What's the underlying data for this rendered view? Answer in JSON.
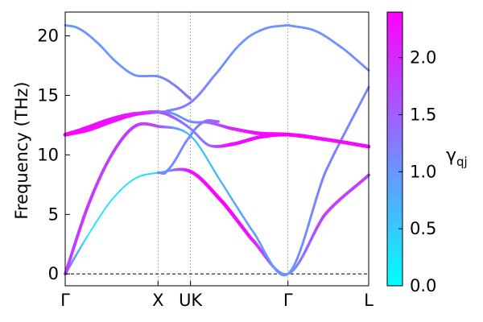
{
  "chart_data": {
    "type": "line",
    "title": "",
    "xlabel": "",
    "ylabel": "Frequency (THz)",
    "ylim": [
      -1,
      22
    ],
    "y_ticks": [
      0,
      5,
      10,
      15,
      20
    ],
    "grid": false,
    "path_points": [
      {
        "label": "Γ",
        "pos": 0
      },
      {
        "label": "X",
        "pos": 1
      },
      {
        "label": "UK",
        "pos": 1.35
      },
      {
        "label": "Γ",
        "pos": 2.4
      },
      {
        "label": "L",
        "pos": 3.27
      }
    ],
    "colorbar": {
      "label_main": "γ",
      "label_sub": "qj",
      "range": [
        0,
        2.4
      ],
      "ticks": [
        "0.0",
        "0.5",
        "1.0",
        "1.5",
        "2.0"
      ],
      "tick_values": [
        0,
        0.5,
        1.0,
        1.5,
        2.0
      ],
      "color_low": "#00ffff",
      "color_high": "#ff00ff"
    },
    "series": [
      {
        "x": [
          0,
          0.25,
          0.5,
          0.75,
          1.0,
          1.35,
          1.7,
          2.0,
          2.4,
          2.8,
          3.27
        ],
        "y": [
          0,
          3.3,
          6.2,
          8.0,
          8.5,
          8.6,
          6.0,
          3.0,
          0,
          5.0,
          8.3
        ],
        "gamma": [
          1.5,
          0.25,
          0.25,
          0.25,
          0.4,
          2.2,
          2.4,
          2.2,
          1.0,
          1.8,
          1.8
        ]
      },
      {
        "x": [
          0,
          0.25,
          0.5,
          0.75,
          1.0,
          1.35,
          1.7,
          2.0,
          2.4,
          2.8,
          3.27
        ],
        "y": [
          0,
          5.8,
          10.0,
          12.4,
          12.4,
          11.6,
          7.5,
          3.8,
          0,
          8.5,
          15.7
        ],
        "gamma": [
          1.8,
          1.9,
          1.8,
          1.9,
          1.7,
          0.55,
          0.7,
          0.9,
          1.0,
          1.2,
          1.1
        ]
      },
      {
        "x": [
          0,
          0.25,
          0.5,
          0.75,
          1.0,
          1.15,
          1.35,
          1.55,
          1.8,
          2.1,
          2.4,
          2.8,
          3.27
        ],
        "y": [
          11.7,
          12.1,
          12.8,
          13.4,
          13.6,
          13.2,
          12.2,
          10.8,
          10.9,
          11.5,
          11.7,
          11.3,
          10.7
        ],
        "gamma": [
          2.4,
          2.3,
          2.3,
          2.3,
          2.1,
          1.6,
          1.2,
          1.3,
          2.3,
          2.3,
          2.4,
          2.3,
          2.3
        ]
      },
      {
        "x": [
          0,
          0.25,
          0.5,
          0.75,
          1.0,
          1.15,
          1.35,
          1.55,
          1.8,
          2.1,
          2.4,
          2.8,
          3.27
        ],
        "y": [
          11.7,
          12.1,
          12.8,
          13.4,
          13.6,
          13.5,
          12.8,
          12.7,
          12.2,
          11.8,
          11.7,
          11.3,
          10.7
        ],
        "gamma": [
          2.4,
          2.3,
          2.2,
          2.2,
          1.4,
          1.0,
          1.1,
          1.3,
          2.0,
          2.3,
          2.4,
          2.3,
          2.3
        ]
      },
      {
        "x": [
          0,
          0.2,
          0.45,
          0.7,
          0.85,
          1.0,
          1.1,
          1.35,
          1.6,
          1.9,
          2.15,
          2.4
        ],
        "y": [
          11.7,
          12.2,
          12.9,
          13.4,
          13.5,
          13.6,
          13.7,
          14.4,
          16.6,
          19.4,
          20.6,
          20.9
        ],
        "gamma": [
          2.4,
          2.3,
          2.3,
          2.2,
          2.1,
          1.5,
          1.2,
          1.2,
          1.1,
          1.0,
          1.0,
          1.0
        ]
      },
      {
        "x": [
          1.0,
          1.1,
          1.35,
          1.5,
          1.65
        ],
        "y": [
          8.5,
          8.7,
          11.6,
          12.8,
          12.8
        ],
        "gamma": [
          1.2,
          1.1,
          1.1,
          1.3,
          1.5
        ]
      },
      {
        "x": [
          0,
          0.15,
          0.35,
          0.55,
          0.75,
          1.0,
          1.15,
          1.35
        ],
        "y": [
          20.9,
          20.6,
          19.4,
          17.8,
          16.7,
          16.6,
          16.0,
          14.7
        ],
        "gamma": [
          1.0,
          1.0,
          1.0,
          1.0,
          1.0,
          1.1,
          1.2,
          1.3
        ]
      },
      {
        "x": [
          2.4,
          2.7,
          3.0,
          3.27
        ],
        "y": [
          20.9,
          20.4,
          18.9,
          17.1
        ],
        "gamma": [
          1.0,
          1.0,
          1.0,
          1.1
        ]
      }
    ]
  }
}
